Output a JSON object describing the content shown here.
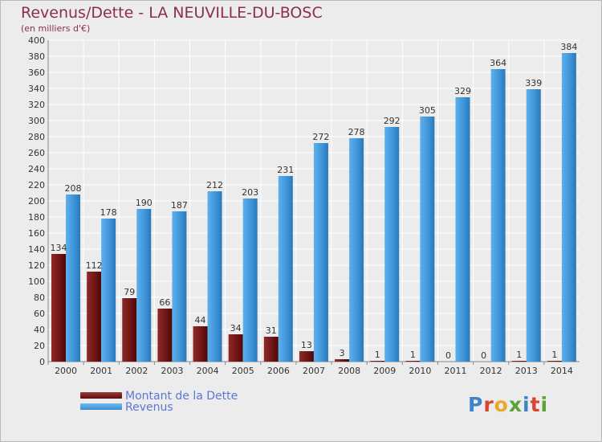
{
  "header": {
    "title": "Revenus/Dette - LA NEUVILLE-DU-BOSC",
    "subtitle": "(en milliers d'€)"
  },
  "logo": {
    "text": "Proxiti",
    "letters": [
      {
        "ch": "P",
        "color": "#3f83c9"
      },
      {
        "ch": "r",
        "color": "#d9462f"
      },
      {
        "ch": "o",
        "color": "#e8a82a"
      },
      {
        "ch": "x",
        "color": "#5aa23a"
      },
      {
        "ch": "i",
        "color": "#3f83c9"
      },
      {
        "ch": "t",
        "color": "#d9462f"
      },
      {
        "ch": "i",
        "color": "#5aa23a"
      }
    ]
  },
  "chart_data": {
    "type": "bar",
    "title": "Revenus/Dette - LA NEUVILLE-DU-BOSC",
    "subtitle": "(en milliers d'€)",
    "xlabel": "",
    "ylabel": "",
    "ylim": [
      0,
      400
    ],
    "ytick_step": 20,
    "grid": true,
    "legend_position": "bottom-left",
    "categories": [
      "2000",
      "2001",
      "2002",
      "2003",
      "2004",
      "2005",
      "2006",
      "2007",
      "2008",
      "2009",
      "2010",
      "2011",
      "2012",
      "2013",
      "2014"
    ],
    "series": [
      {
        "name": "Montant de la Dette",
        "color": "#7a1b1b",
        "values": [
          134,
          112,
          79,
          66,
          44,
          34,
          31,
          13,
          3,
          1,
          1,
          0,
          0,
          1,
          1
        ]
      },
      {
        "name": "Revenus",
        "color": "#4ea2e2",
        "values": [
          208,
          178,
          190,
          187,
          212,
          203,
          231,
          272,
          278,
          292,
          305,
          329,
          364,
          339,
          384
        ]
      }
    ]
  }
}
